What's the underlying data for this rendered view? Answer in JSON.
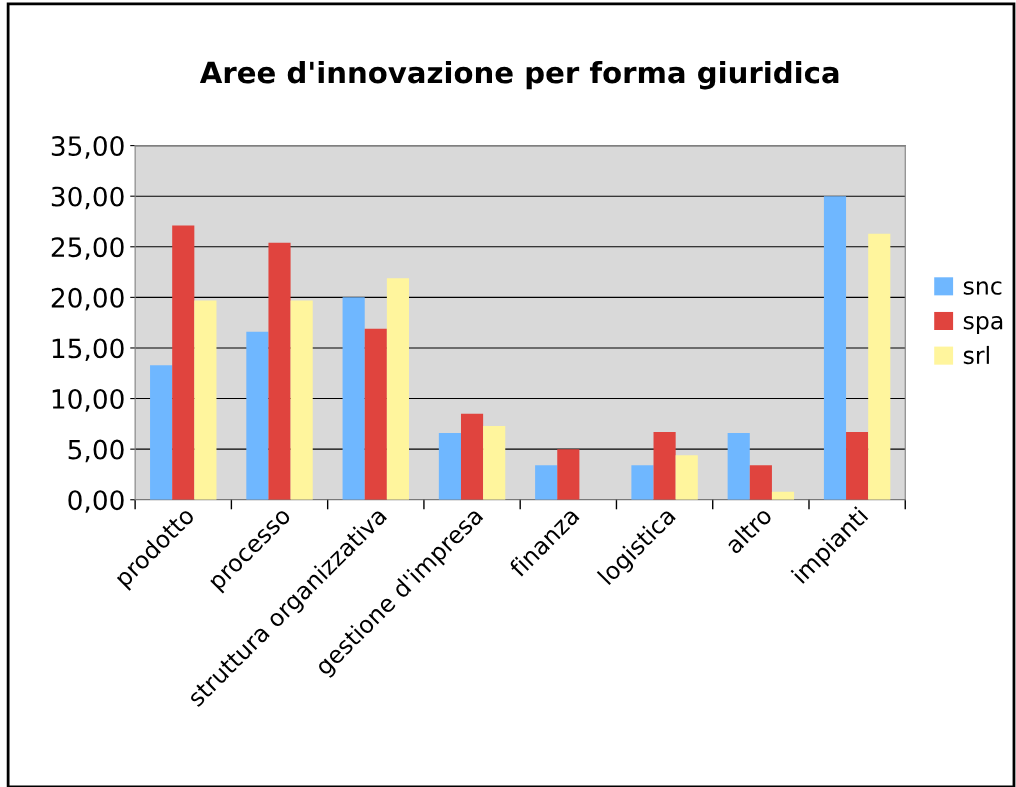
{
  "chart_data": {
    "type": "bar",
    "title": "Aree d'innovazione per forma giuridica",
    "categories": [
      "prodotto",
      "processo",
      "struttura organizzativa",
      "gestione d'impresa",
      "finanza",
      "logistica",
      "altro",
      "impianti"
    ],
    "series": [
      {
        "name": "snc",
        "color": "#6fb7ff",
        "values": [
          13.3,
          16.6,
          20.0,
          6.6,
          3.4,
          3.4,
          6.6,
          30.0
        ]
      },
      {
        "name": "spa",
        "color": "#e0443e",
        "values": [
          27.1,
          25.4,
          16.9,
          8.5,
          5.0,
          6.7,
          3.4,
          6.7
        ]
      },
      {
        "name": "srl",
        "color": "#fff59d",
        "values": [
          19.7,
          19.7,
          21.9,
          7.3,
          0,
          4.4,
          0.8,
          26.3
        ]
      }
    ],
    "ylim": [
      0,
      35
    ],
    "yticks": [
      {
        "value": 0,
        "label": "0,00"
      },
      {
        "value": 5,
        "label": "5,00"
      },
      {
        "value": 10,
        "label": "10,00"
      },
      {
        "value": 15,
        "label": "15,00"
      },
      {
        "value": 20,
        "label": "20,00"
      },
      {
        "value": 25,
        "label": "25,00"
      },
      {
        "value": 30,
        "label": "30,00"
      },
      {
        "value": 35,
        "label": "35,00"
      }
    ],
    "grid": "y",
    "legend": "right"
  }
}
